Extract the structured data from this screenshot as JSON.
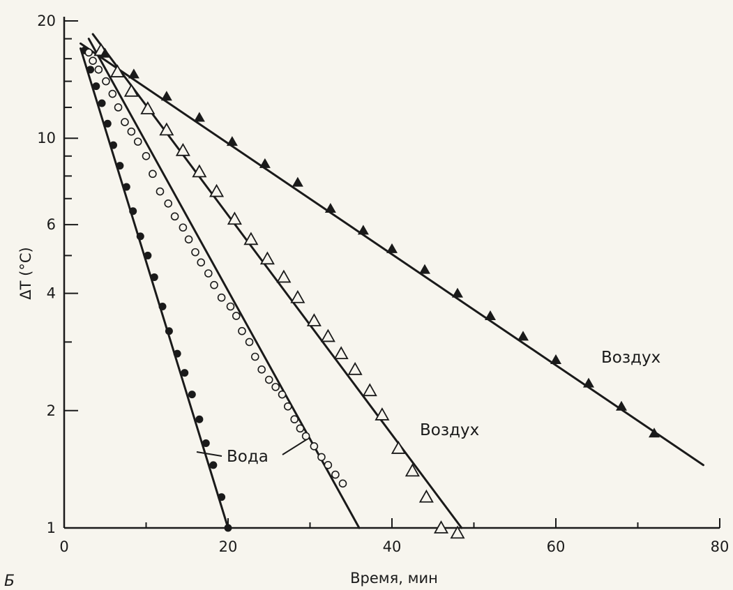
{
  "chart_data": {
    "type": "scatter",
    "panel_label": "Б",
    "xlabel": "Время, мин",
    "ylabel": "ΔT (°C)",
    "xlim": [
      0,
      80
    ],
    "ylim": [
      1,
      20
    ],
    "yscale": "log",
    "grid": false,
    "xticks": [
      0,
      20,
      40,
      60,
      80
    ],
    "xtick_labels": [
      "0",
      "20",
      "40",
      "60",
      "80"
    ],
    "yticks": [
      1,
      2,
      4,
      6,
      10,
      20
    ],
    "ytick_labels": [
      "1",
      "2",
      "4",
      "6",
      "10",
      "20"
    ],
    "colors": {
      "ink": "#1a1a1a",
      "background": "#f7f5ee"
    },
    "series": [
      {
        "marker": "filled-circle",
        "x": [
          2.5,
          3.2,
          3.9,
          4.6,
          5.3,
          6.0,
          6.8,
          7.6,
          8.4,
          9.3,
          10.2,
          11.0,
          12.0,
          12.8,
          13.8,
          14.7,
          15.6,
          16.5,
          17.3,
          18.2,
          19.2,
          20.0
        ],
        "y": [
          16.8,
          15.0,
          13.6,
          12.3,
          10.9,
          9.6,
          8.5,
          7.5,
          6.5,
          5.6,
          5.0,
          4.4,
          3.7,
          3.2,
          2.8,
          2.5,
          2.2,
          1.9,
          1.65,
          1.45,
          1.2,
          1.0
        ],
        "fit": {
          "x": [
            2.0,
            20.0
          ],
          "y": [
            17.0,
            1.0
          ]
        }
      },
      {
        "marker": "open-circle",
        "x": [
          3.0,
          3.5,
          4.2,
          5.1,
          5.9,
          6.6,
          7.4,
          8.2,
          9.0,
          10.0,
          10.8,
          11.7,
          12.7,
          13.5,
          14.5,
          15.2,
          16.0,
          16.7,
          17.6,
          18.3,
          19.2,
          20.3,
          21.0,
          21.7,
          22.6,
          23.3,
          24.1,
          25.0,
          25.8,
          26.6,
          27.3,
          28.1,
          28.8,
          29.5,
          30.5,
          31.4,
          32.2,
          33.1,
          34.0
        ],
        "y": [
          16.6,
          15.8,
          15.0,
          14.0,
          13.0,
          12.0,
          11.0,
          10.4,
          9.8,
          9.0,
          8.1,
          7.3,
          6.8,
          6.3,
          5.9,
          5.5,
          5.1,
          4.8,
          4.5,
          4.2,
          3.9,
          3.7,
          3.5,
          3.2,
          3.0,
          2.75,
          2.55,
          2.4,
          2.3,
          2.2,
          2.05,
          1.9,
          1.8,
          1.72,
          1.62,
          1.52,
          1.45,
          1.37,
          1.3
        ]
      },
      {
        "name": "Вода",
        "marker": "fit-line",
        "fit": {
          "x": [
            3.0,
            36.0
          ],
          "y": [
            18.0,
            1.0
          ]
        }
      },
      {
        "name": "Воздух",
        "marker": "open-triangle",
        "x": [
          4.5,
          6.5,
          8.2,
          10.2,
          12.5,
          14.5,
          16.5,
          18.6,
          20.8,
          22.8,
          24.8,
          26.8,
          28.5,
          30.5,
          32.2,
          33.8,
          35.5,
          37.3,
          38.8,
          40.8,
          42.5,
          44.2,
          46.0,
          48.0
        ],
        "y": [
          16.8,
          14.8,
          13.2,
          11.9,
          10.5,
          9.3,
          8.2,
          7.3,
          6.2,
          5.5,
          4.9,
          4.4,
          3.9,
          3.4,
          3.1,
          2.8,
          2.55,
          2.25,
          1.95,
          1.6,
          1.4,
          1.2,
          1.0,
          0.97
        ],
        "fit": {
          "x": [
            3.5,
            48.5
          ],
          "y": [
            18.5,
            1.0
          ]
        }
      },
      {
        "name": "Воздух",
        "marker": "filled-triangle",
        "x": [
          5.0,
          8.5,
          12.5,
          16.5,
          20.5,
          24.5,
          28.5,
          32.5,
          36.5,
          40.0,
          44.0,
          48.0,
          52.0,
          56.0,
          60.0,
          64.0,
          68.0,
          72.0
        ],
        "y": [
          16.5,
          14.6,
          12.8,
          11.3,
          9.8,
          8.6,
          7.7,
          6.6,
          5.8,
          5.2,
          4.6,
          4.0,
          3.5,
          3.1,
          2.7,
          2.35,
          2.05,
          1.75
        ],
        "fit": {
          "x": [
            2.0,
            78.0
          ],
          "y": [
            17.5,
            1.45
          ]
        }
      }
    ]
  }
}
